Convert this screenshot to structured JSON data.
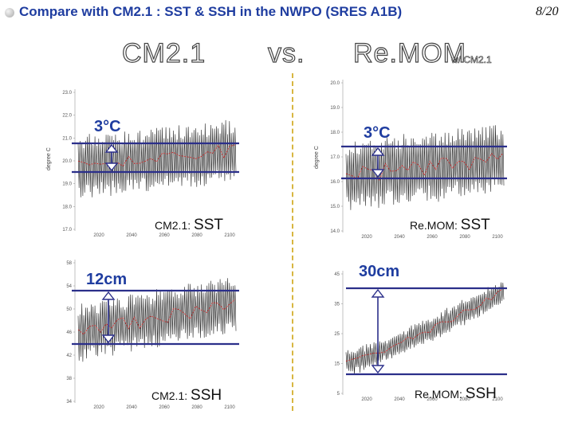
{
  "slide": {
    "title": "Compare with CM2.1 : SST & SSH in the NWPO (SRES A1B)",
    "page": "8/20"
  },
  "captions": {
    "left": "CM2.1",
    "vs": "vs.",
    "right": "Re.MOM",
    "right_sub": "w/ CM2.1"
  },
  "panels": {
    "cm_sst": {
      "label_small": "CM2.1:",
      "label_big": "SST",
      "annotation": "3°C",
      "ylabel": "degree C",
      "yticks": [
        "23.0",
        "22.0",
        "21.0",
        "20.0",
        "19.0",
        "18.0",
        "17.0"
      ],
      "xticks": [
        "2020",
        "2040",
        "2060",
        "2080",
        "2100"
      ]
    },
    "remom_sst": {
      "label_small": "Re.MOM:",
      "label_big": "SST",
      "annotation": "3°C",
      "ylabel": "degree C",
      "yticks": [
        "20.0",
        "19.0",
        "18.0",
        "17.0",
        "16.0",
        "15.0",
        "14.0"
      ],
      "xticks": [
        "2020",
        "2040",
        "2060",
        "2080",
        "2100"
      ]
    },
    "cm_ssh": {
      "label_small": "CM2.1:",
      "label_big": "SSH",
      "annotation": "12cm",
      "yticks": [
        "58",
        "54",
        "50",
        "46",
        "42",
        "38",
        "34"
      ],
      "xticks": [
        "2020",
        "2040",
        "2060",
        "2080",
        "2100"
      ]
    },
    "remom_ssh": {
      "label_small": "Re.MOM:",
      "label_big": "SSH",
      "annotation": "30cm",
      "yticks": [
        "45",
        "35",
        "25",
        "15",
        "5"
      ],
      "xticks": [
        "2020",
        "2040",
        "2060",
        "2080",
        "2100"
      ]
    }
  },
  "colors": {
    "title": "#1f3da0",
    "band_lines": "#2b2f8a",
    "annotation": "#1f3da0",
    "series": "#222222",
    "trend": "#cc2a2a",
    "divider": "#d8b640"
  }
}
